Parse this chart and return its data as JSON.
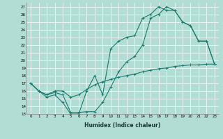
{
  "xlabel": "Humidex (Indice chaleur)",
  "bg_color": "#b2ddd4",
  "line_color": "#1a7a6e",
  "grid_color": "#ffffff",
  "xlim": [
    -0.5,
    23.5
  ],
  "ylim": [
    13,
    27.5
  ],
  "xticks": [
    0,
    1,
    2,
    3,
    4,
    5,
    6,
    7,
    8,
    9,
    10,
    11,
    12,
    13,
    14,
    15,
    16,
    17,
    18,
    19,
    20,
    21,
    22,
    23
  ],
  "yticks": [
    13,
    14,
    15,
    16,
    17,
    18,
    19,
    20,
    21,
    22,
    23,
    24,
    25,
    26,
    27
  ],
  "line1_x": [
    0,
    1,
    2,
    3,
    4,
    5,
    6,
    7,
    8,
    9,
    10,
    11,
    12,
    13,
    14,
    15,
    16,
    17,
    18,
    19,
    20,
    21,
    22,
    23
  ],
  "line1_y": [
    17.0,
    16.0,
    15.2,
    15.5,
    14.5,
    13.0,
    13.0,
    16.0,
    18.0,
    15.5,
    21.5,
    22.5,
    23.0,
    23.2,
    25.5,
    26.0,
    27.0,
    26.5,
    26.5,
    25.0,
    24.5,
    22.5,
    22.5,
    19.5
  ],
  "line2_x": [
    0,
    1,
    2,
    3,
    4,
    5,
    6,
    7,
    8,
    9,
    10,
    11,
    12,
    13,
    14,
    15,
    16,
    17,
    18,
    19,
    20,
    21,
    22,
    23
  ],
  "line2_y": [
    17.0,
    16.0,
    15.5,
    15.8,
    15.5,
    13.2,
    13.2,
    13.3,
    13.3,
    14.5,
    16.5,
    18.5,
    19.8,
    20.5,
    22.0,
    25.5,
    26.0,
    27.0,
    26.5,
    25.0,
    24.5,
    22.5,
    22.5,
    19.5
  ],
  "line3_x": [
    0,
    1,
    2,
    3,
    4,
    5,
    6,
    7,
    8,
    9,
    10,
    11,
    12,
    13,
    14,
    15,
    16,
    17,
    18,
    19,
    20,
    21,
    22,
    23
  ],
  "line3_y": [
    17.0,
    16.0,
    15.5,
    16.0,
    16.0,
    15.2,
    15.5,
    16.2,
    16.8,
    17.2,
    17.5,
    17.8,
    18.0,
    18.2,
    18.5,
    18.7,
    18.9,
    19.0,
    19.2,
    19.3,
    19.4,
    19.4,
    19.5,
    19.5
  ]
}
